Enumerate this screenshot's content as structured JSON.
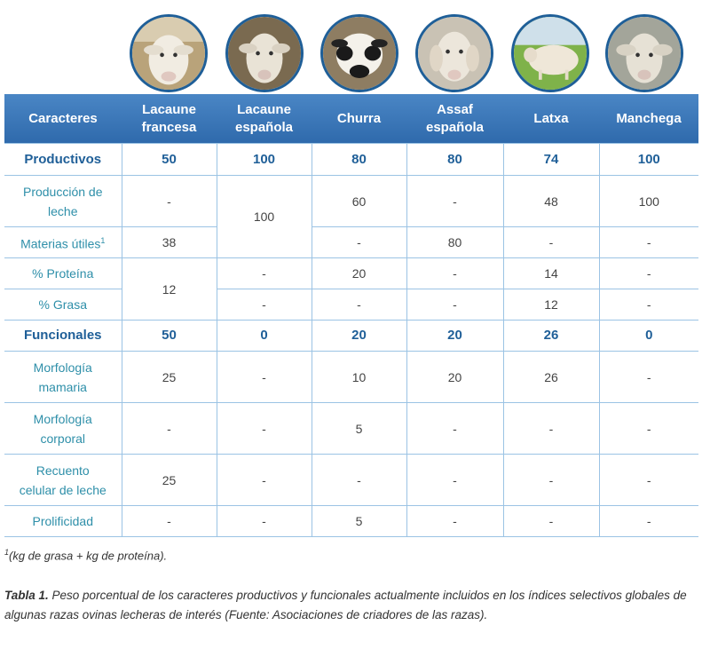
{
  "photos": [
    {
      "name": "Lacaune francesa",
      "icon": "sheep-white-icon",
      "bg": "#b9a37a",
      "face": "#f1ece2"
    },
    {
      "name": "Lacaune española",
      "icon": "sheep-white-icon",
      "bg": "#7a6a50",
      "face": "#e9e3d6"
    },
    {
      "name": "Churra",
      "icon": "sheep-churra-icon",
      "bg": "#8e7d62",
      "face": "#f4f1ea"
    },
    {
      "name": "Assaf española",
      "icon": "sheep-white-icon",
      "bg": "#c9c2b4",
      "face": "#ece6db"
    },
    {
      "name": "Latxa",
      "icon": "sheep-latxa-icon",
      "bg": "#7fb24a",
      "face": "#efe7d8"
    },
    {
      "name": "Manchega",
      "icon": "sheep-white-icon",
      "bg": "#a3a59a",
      "face": "#e6e1d5"
    }
  ],
  "table": {
    "header": [
      "Caracteres",
      "Lacaune\nfrancesa",
      "Lacaune\nespañola",
      "Churra",
      "Assaf\nespañola",
      "Latxa",
      "Manchega"
    ],
    "productivos": {
      "label": "Productivos",
      "values": [
        "50",
        "100",
        "80",
        "80",
        "74",
        "100"
      ]
    },
    "produccion": {
      "label": "Producción de\nleche",
      "lf": "-",
      "le": "100",
      "ch": "60",
      "as": "-",
      "la": "48",
      "ma": "100"
    },
    "materias": {
      "label": "Materias útiles",
      "sup": "1",
      "lf": "38",
      "ch": "-",
      "as": "80",
      "la": "-",
      "ma": "-"
    },
    "proteina": {
      "label": "% Proteína",
      "lf": "12",
      "le": "-",
      "ch": "20",
      "as": "-",
      "la": "14",
      "ma": "-"
    },
    "grasa": {
      "label": "% Grasa",
      "le": "-",
      "ch": "-",
      "as": "-",
      "la": "12",
      "ma": "-"
    },
    "funcionales": {
      "label": "Funcionales",
      "values": [
        "50",
        "0",
        "20",
        "20",
        "26",
        "0"
      ]
    },
    "rows": [
      {
        "label": "Morfología\nmamaria",
        "values": [
          "25",
          "-",
          "10",
          "20",
          "26",
          "-"
        ]
      },
      {
        "label": "Morfología\ncorporal",
        "values": [
          "-",
          "-",
          "5",
          "-",
          "-",
          "-"
        ]
      },
      {
        "label": "Recuento\ncelular de leche",
        "values": [
          "25",
          "-",
          "-",
          "-",
          "-",
          "-"
        ]
      },
      {
        "label": "Prolificidad",
        "values": [
          "-",
          "-",
          "5",
          "-",
          "-",
          "-"
        ]
      }
    ]
  },
  "note": {
    "sup": "1",
    "text": "(kg de grasa + kg de proteína)."
  },
  "caption": {
    "label": "Tabla 1.",
    "text": " Peso porcentual de los caracteres productivos y funcionales actualmente incluidos en los índices selectivos globales de algunas razas ovinas lecheras de interés (Fuente: Asociaciones de criadores de las razas)."
  },
  "colors": {
    "header": "#2f6aac",
    "accent": "#1f5f98",
    "label": "#2e8fa9",
    "border": "#9bc3e4"
  }
}
